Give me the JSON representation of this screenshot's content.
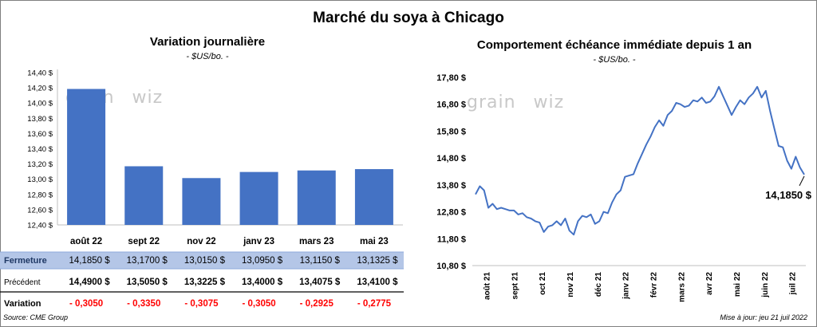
{
  "header": {
    "title": "Marché du soya à Chicago"
  },
  "watermark": {
    "left": "grain",
    "right": "wiz"
  },
  "footer": {
    "source": "Source: CME Group",
    "updated": "Mise à jour: jeu 21 juil 2022"
  },
  "colors": {
    "bar": "#4472c4",
    "line": "#4472c4",
    "row_highlight": "#b4c6e7",
    "negative": "#ff0000",
    "grid": "#d9d9d9"
  },
  "chart_data": [
    {
      "type": "bar",
      "title": "Variation  journalière",
      "subtitle": "- $US/bo. -",
      "categories": [
        "août 22",
        "sept 22",
        "nov 22",
        "janv 23",
        "mars 23",
        "mai 23"
      ],
      "values": [
        14.185,
        13.17,
        13.015,
        13.095,
        13.115,
        13.1325
      ],
      "ylim": [
        12.4,
        14.4
      ],
      "yticks": [
        "12,40 $",
        "12,60 $",
        "12,80 $",
        "13,00 $",
        "13,20 $",
        "13,40 $",
        "13,60 $",
        "13,80 $",
        "14,00 $",
        "14,20 $",
        "14,40 $"
      ],
      "grid": false,
      "table": {
        "rows": [
          {
            "label": "Fermeture",
            "values": [
              "14,1850  $",
              "13,1700  $",
              "13,0150  $",
              "13,0950  $",
              "13,1150  $",
              "13,1325  $"
            ]
          },
          {
            "label": "Précédent",
            "values": [
              "14,4900  $",
              "13,5050  $",
              "13,3225  $",
              "13,4000  $",
              "13,4075  $",
              "13,4100  $"
            ]
          },
          {
            "label": "Variation",
            "values": [
              "- 0,3050",
              "- 0,3350",
              "- 0,3075",
              "- 0,3050",
              "- 0,2925",
              "- 0,2775"
            ]
          }
        ]
      }
    },
    {
      "type": "line",
      "title": "Comportement  échéance immédiate depuis 1 an",
      "subtitle": "- $US/bo. -",
      "xticks": [
        "août 21",
        "sept 21",
        "oct 21",
        "nov 21",
        "déc 21",
        "janv 22",
        "févr 22",
        "mars 22",
        "avr 22",
        "mai 22",
        "juin 22",
        "juil 22"
      ],
      "ylim": [
        10.8,
        17.8
      ],
      "yticks": [
        "10,80 $",
        "11,80 $",
        "12,80 $",
        "13,80 $",
        "14,80 $",
        "15,80 $",
        "16,80 $",
        "17,80 $"
      ],
      "grid": false,
      "last_label": "14,1850 $",
      "series": [
        {
          "values": [
            13.45,
            13.75,
            13.6,
            12.95,
            13.1,
            12.9,
            12.95,
            12.9,
            12.85,
            12.85,
            12.7,
            12.75,
            12.6,
            12.55,
            12.45,
            12.4,
            12.05,
            12.25,
            12.3,
            12.45,
            12.3,
            12.55,
            12.1,
            11.95,
            12.45,
            12.65,
            12.6,
            12.7,
            12.35,
            12.45,
            12.8,
            12.75,
            13.15,
            13.45,
            13.6,
            14.1,
            14.15,
            14.2,
            14.6,
            14.95,
            15.3,
            15.6,
            15.95,
            16.2,
            16.0,
            16.4,
            16.55,
            16.85,
            16.8,
            16.7,
            16.75,
            16.95,
            16.9,
            17.05,
            16.85,
            16.9,
            17.1,
            17.45,
            17.1,
            16.75,
            16.4,
            16.7,
            16.95,
            16.8,
            17.05,
            17.2,
            17.45,
            17.05,
            17.3,
            16.55,
            15.9,
            15.25,
            15.2,
            14.7,
            14.4,
            14.85,
            14.45,
            14.185
          ]
        }
      ]
    }
  ]
}
